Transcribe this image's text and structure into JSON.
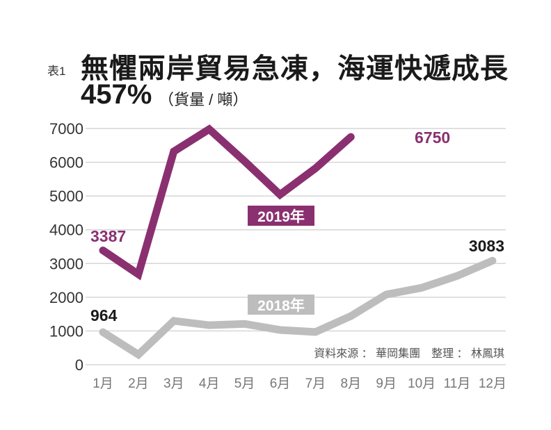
{
  "header": {
    "tag": "表1",
    "title": "無懼兩岸貿易急凍，海運快遞成長",
    "subtitle_value": "457%",
    "subtitle_unit": "（貨量 / 噸）"
  },
  "source": "資料來源 ： 華岡集團　整理 ： 林鳳琪",
  "chart_data": {
    "type": "line",
    "categories": [
      "1月",
      "2月",
      "3月",
      "4月",
      "5月",
      "6月",
      "7月",
      "8月",
      "9月",
      "10月",
      "11月",
      "12月"
    ],
    "ylim": [
      0,
      7000
    ],
    "yticks": [
      0,
      1000,
      2000,
      3000,
      4000,
      5000,
      6000,
      7000
    ],
    "grid": true,
    "series": [
      {
        "name": "2019年",
        "color": "#8a3070",
        "values": [
          3387,
          2680,
          6320,
          6980,
          6030,
          5040,
          5820,
          6750,
          null,
          null,
          null,
          null
        ],
        "labels": [
          {
            "text": "3387",
            "index": 0
          },
          {
            "text": "6750",
            "index": 7
          }
        ]
      },
      {
        "name": "2018年",
        "color": "#bdbdbd",
        "values": [
          964,
          300,
          1300,
          1170,
          1210,
          1030,
          970,
          1440,
          2080,
          2280,
          2630,
          3083
        ],
        "labels": [
          {
            "text": "964",
            "index": 0
          },
          {
            "text": "3083",
            "index": 11
          }
        ]
      }
    ]
  }
}
